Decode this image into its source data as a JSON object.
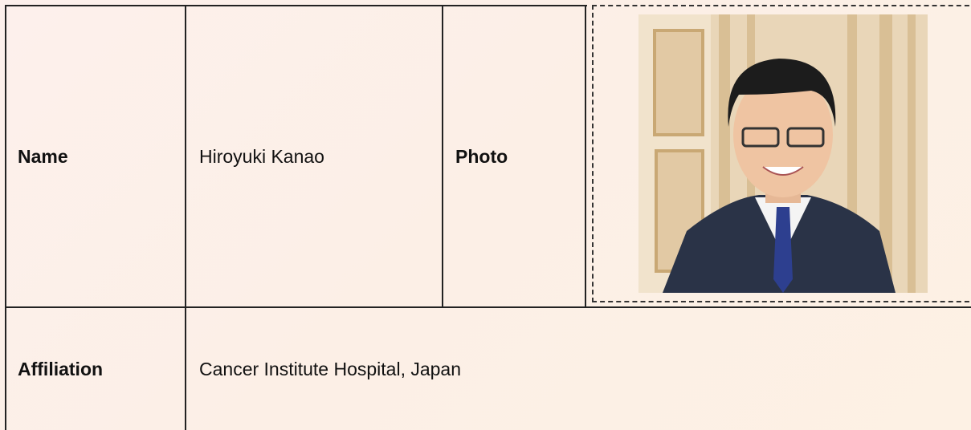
{
  "table": {
    "rows": [
      [
        "Name",
        "Hiroyuki Kanao",
        "Photo"
      ],
      [
        "Affiliation",
        "Cancer Institute Hospital, Japan"
      ]
    ]
  }
}
